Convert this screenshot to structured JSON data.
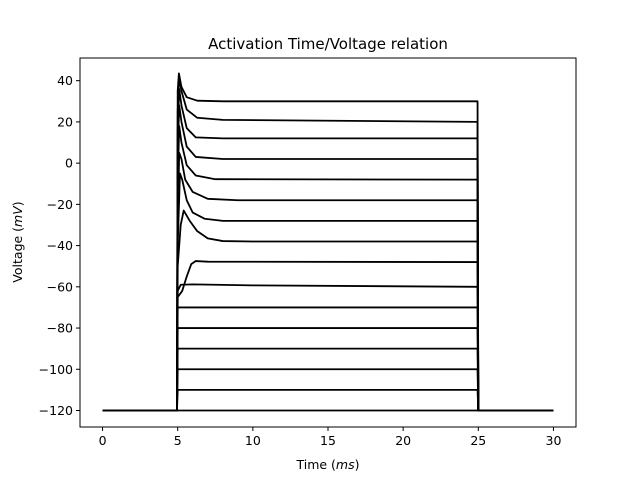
{
  "chart_data": {
    "type": "line",
    "title": "Activation Time/Voltage relation",
    "xlabel_text": "Time (",
    "xlabel_unit": "ms",
    "xlabel_close": ")",
    "ylabel_text": "Voltage (",
    "ylabel_unit": "mV",
    "ylabel_close": ")",
    "xlim": [
      -1.5,
      31.5
    ],
    "ylim": [
      -128,
      51
    ],
    "xticks": [
      0,
      5,
      10,
      15,
      20,
      25,
      30
    ],
    "yticks": [
      -120,
      -100,
      -80,
      -60,
      -40,
      -20,
      0,
      20,
      40
    ],
    "ytick_labels": [
      "−120",
      "−100",
      "−80",
      "−60",
      "−40",
      "−20",
      "0",
      "20",
      "40"
    ],
    "grid": false,
    "line_color": "#000000",
    "holding_potential": -120,
    "step_on": 5,
    "step_off": 25,
    "t_end": 30,
    "series": [
      {
        "values": [
          [
            0,
            -120
          ],
          [
            4.95,
            -120
          ],
          [
            5,
            -120
          ],
          [
            24.95,
            -120
          ],
          [
            25,
            -120
          ],
          [
            30,
            -120
          ]
        ]
      },
      {
        "values": [
          [
            0,
            -120
          ],
          [
            4.95,
            -120
          ],
          [
            5,
            -110
          ],
          [
            24.95,
            -110
          ],
          [
            25,
            -120
          ],
          [
            30,
            -120
          ]
        ]
      },
      {
        "values": [
          [
            0,
            -120
          ],
          [
            4.95,
            -120
          ],
          [
            5,
            -100
          ],
          [
            24.95,
            -100
          ],
          [
            25,
            -120
          ],
          [
            30,
            -120
          ]
        ]
      },
      {
        "values": [
          [
            0,
            -120
          ],
          [
            4.95,
            -120
          ],
          [
            5,
            -90
          ],
          [
            24.95,
            -90
          ],
          [
            25,
            -120
          ],
          [
            30,
            -120
          ]
        ]
      },
      {
        "values": [
          [
            0,
            -120
          ],
          [
            4.95,
            -120
          ],
          [
            5,
            -80
          ],
          [
            24.95,
            -80
          ],
          [
            25,
            -120
          ],
          [
            30,
            -120
          ]
        ]
      },
      {
        "values": [
          [
            0,
            -120
          ],
          [
            4.95,
            -120
          ],
          [
            5,
            -70
          ],
          [
            24.95,
            -70
          ],
          [
            25,
            -120
          ],
          [
            30,
            -120
          ]
        ]
      },
      {
        "values": [
          [
            0,
            -120
          ],
          [
            4.95,
            -120
          ],
          [
            5,
            -62
          ],
          [
            5.2,
            -59
          ],
          [
            6,
            -58.8
          ],
          [
            10,
            -59.3
          ],
          [
            24.95,
            -60
          ],
          [
            25,
            -120
          ],
          [
            30,
            -120
          ]
        ]
      },
      {
        "values": [
          [
            0,
            -120
          ],
          [
            4.95,
            -120
          ],
          [
            5,
            -65
          ],
          [
            5.3,
            -62
          ],
          [
            5.6,
            -55
          ],
          [
            5.9,
            -49
          ],
          [
            6.2,
            -47.5
          ],
          [
            7,
            -47.8
          ],
          [
            24.95,
            -48
          ],
          [
            25,
            -120
          ],
          [
            30,
            -120
          ]
        ]
      },
      {
        "values": [
          [
            0,
            -120
          ],
          [
            4.95,
            -120
          ],
          [
            5,
            -50
          ],
          [
            5.2,
            -30
          ],
          [
            5.4,
            -23
          ],
          [
            5.8,
            -28
          ],
          [
            6.3,
            -33
          ],
          [
            7,
            -36.5
          ],
          [
            8,
            -37.8
          ],
          [
            10,
            -38
          ],
          [
            24.95,
            -38
          ],
          [
            25,
            -120
          ],
          [
            30,
            -120
          ]
        ]
      },
      {
        "values": [
          [
            0,
            -120
          ],
          [
            4.95,
            -120
          ],
          [
            5,
            -40
          ],
          [
            5.15,
            -5
          ],
          [
            5.3,
            -8
          ],
          [
            5.6,
            -18
          ],
          [
            6,
            -24
          ],
          [
            6.8,
            -27
          ],
          [
            8,
            -28
          ],
          [
            24.95,
            -28
          ],
          [
            25,
            -120
          ],
          [
            30,
            -120
          ]
        ]
      },
      {
        "values": [
          [
            0,
            -120
          ],
          [
            4.95,
            -120
          ],
          [
            5,
            -30
          ],
          [
            5.1,
            5
          ],
          [
            5.25,
            2
          ],
          [
            5.5,
            -8
          ],
          [
            6,
            -14
          ],
          [
            7,
            -17.3
          ],
          [
            9,
            -18
          ],
          [
            24.95,
            -18
          ],
          [
            25,
            -120
          ],
          [
            30,
            -120
          ]
        ]
      },
      {
        "values": [
          [
            0,
            -120
          ],
          [
            4.95,
            -120
          ],
          [
            5,
            -10
          ],
          [
            5.1,
            18
          ],
          [
            5.25,
            10
          ],
          [
            5.6,
            -1
          ],
          [
            6.2,
            -6
          ],
          [
            7.5,
            -7.8
          ],
          [
            24.95,
            -8
          ],
          [
            25,
            -120
          ],
          [
            30,
            -120
          ]
        ]
      },
      {
        "values": [
          [
            0,
            -120
          ],
          [
            4.95,
            -120
          ],
          [
            5,
            5
          ],
          [
            5.1,
            28
          ],
          [
            5.25,
            20
          ],
          [
            5.6,
            8
          ],
          [
            6.2,
            3
          ],
          [
            8,
            2
          ],
          [
            24.95,
            2
          ],
          [
            25,
            -120
          ],
          [
            30,
            -120
          ]
        ]
      },
      {
        "values": [
          [
            0,
            -120
          ],
          [
            4.95,
            -120
          ],
          [
            5,
            15
          ],
          [
            5.1,
            36
          ],
          [
            5.25,
            28
          ],
          [
            5.6,
            17
          ],
          [
            6.2,
            12.5
          ],
          [
            8,
            12
          ],
          [
            24.95,
            12
          ],
          [
            25,
            -120
          ],
          [
            30,
            -120
          ]
        ]
      },
      {
        "values": [
          [
            0,
            -120
          ],
          [
            4.95,
            -120
          ],
          [
            5,
            25
          ],
          [
            5.1,
            42
          ],
          [
            5.25,
            35
          ],
          [
            5.6,
            26
          ],
          [
            6.3,
            22
          ],
          [
            8,
            21
          ],
          [
            24.95,
            20
          ],
          [
            25,
            -120
          ],
          [
            30,
            -120
          ]
        ]
      },
      {
        "values": [
          [
            0,
            -120
          ],
          [
            4.95,
            -120
          ],
          [
            5,
            35
          ],
          [
            5.08,
            43.5
          ],
          [
            5.25,
            37
          ],
          [
            5.6,
            32
          ],
          [
            6.3,
            30.3
          ],
          [
            8,
            30
          ],
          [
            24.95,
            30
          ],
          [
            25,
            -120
          ],
          [
            30,
            -120
          ]
        ]
      }
    ]
  }
}
